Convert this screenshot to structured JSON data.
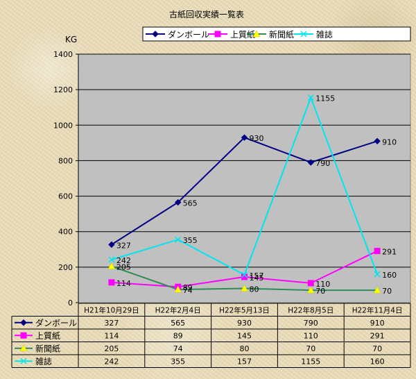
{
  "chart_data": {
    "type": "line",
    "title": "古紙回収実績一覧表",
    "ylabel": "KG",
    "ylim": [
      0,
      1400
    ],
    "yticks": [
      0,
      200,
      400,
      600,
      800,
      1000,
      1200,
      1400
    ],
    "categories": [
      "H21年10月29日",
      "H22年2月4日",
      "H22年5月13日",
      "H22年8月5日",
      "H22年11月4日"
    ],
    "grid": true,
    "legend": "top-right",
    "data_table": true,
    "series": [
      {
        "name": "ダンボール",
        "values": [
          327,
          565,
          930,
          790,
          910
        ],
        "color": "#000080",
        "marker": "diamond"
      },
      {
        "name": "上質紙",
        "values": [
          114,
          89,
          145,
          110,
          291
        ],
        "color": "#ff00ff",
        "marker": "square"
      },
      {
        "name": "新聞紙",
        "values": [
          205,
          74,
          80,
          70,
          70
        ],
        "color": "#2e8b57",
        "marker": "triangle",
        "marker_color": "#ffff00"
      },
      {
        "name": "雑誌",
        "values": [
          242,
          355,
          157,
          1155,
          160
        ],
        "color": "#00e5ee",
        "marker": "x"
      }
    ]
  }
}
